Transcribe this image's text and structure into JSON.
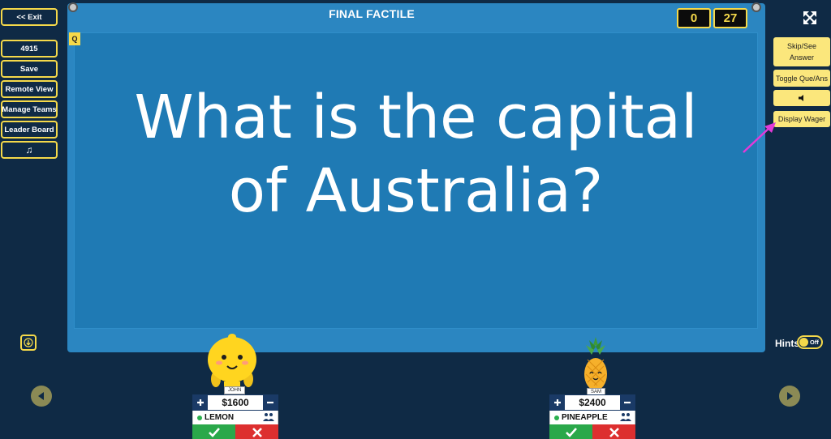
{
  "left_sidebar": {
    "exit": "<< Exit",
    "game_code": "4915",
    "save": "Save",
    "remote_view": "Remote View",
    "manage_teams": "Manage Teams",
    "leader_board": "Leader Board",
    "music_icon": "♫"
  },
  "board": {
    "title": "FINAL FACTILE",
    "badge": "Q",
    "question_line1": "What is the capital",
    "question_line2": "of Australia?",
    "score_left": "0",
    "score_right": "27"
  },
  "right_sidebar": {
    "skip_line1": "Skip/See",
    "skip_line2": "Answer",
    "toggle": "Toggle Que/Ans",
    "display_wager": "Display Wager",
    "hints_label": "Hints",
    "hints_state": "Off"
  },
  "teams": [
    {
      "player": "JOHN",
      "amount": "$1600",
      "team": "LEMON"
    },
    {
      "player": "SAM",
      "amount": "$2400",
      "team": "PINEAPPLE"
    }
  ],
  "colors": {
    "background": "#0f2a45",
    "board": "#2b86c1",
    "accent": "#f5d94a",
    "annotation_arrow": "#e23ad8"
  }
}
